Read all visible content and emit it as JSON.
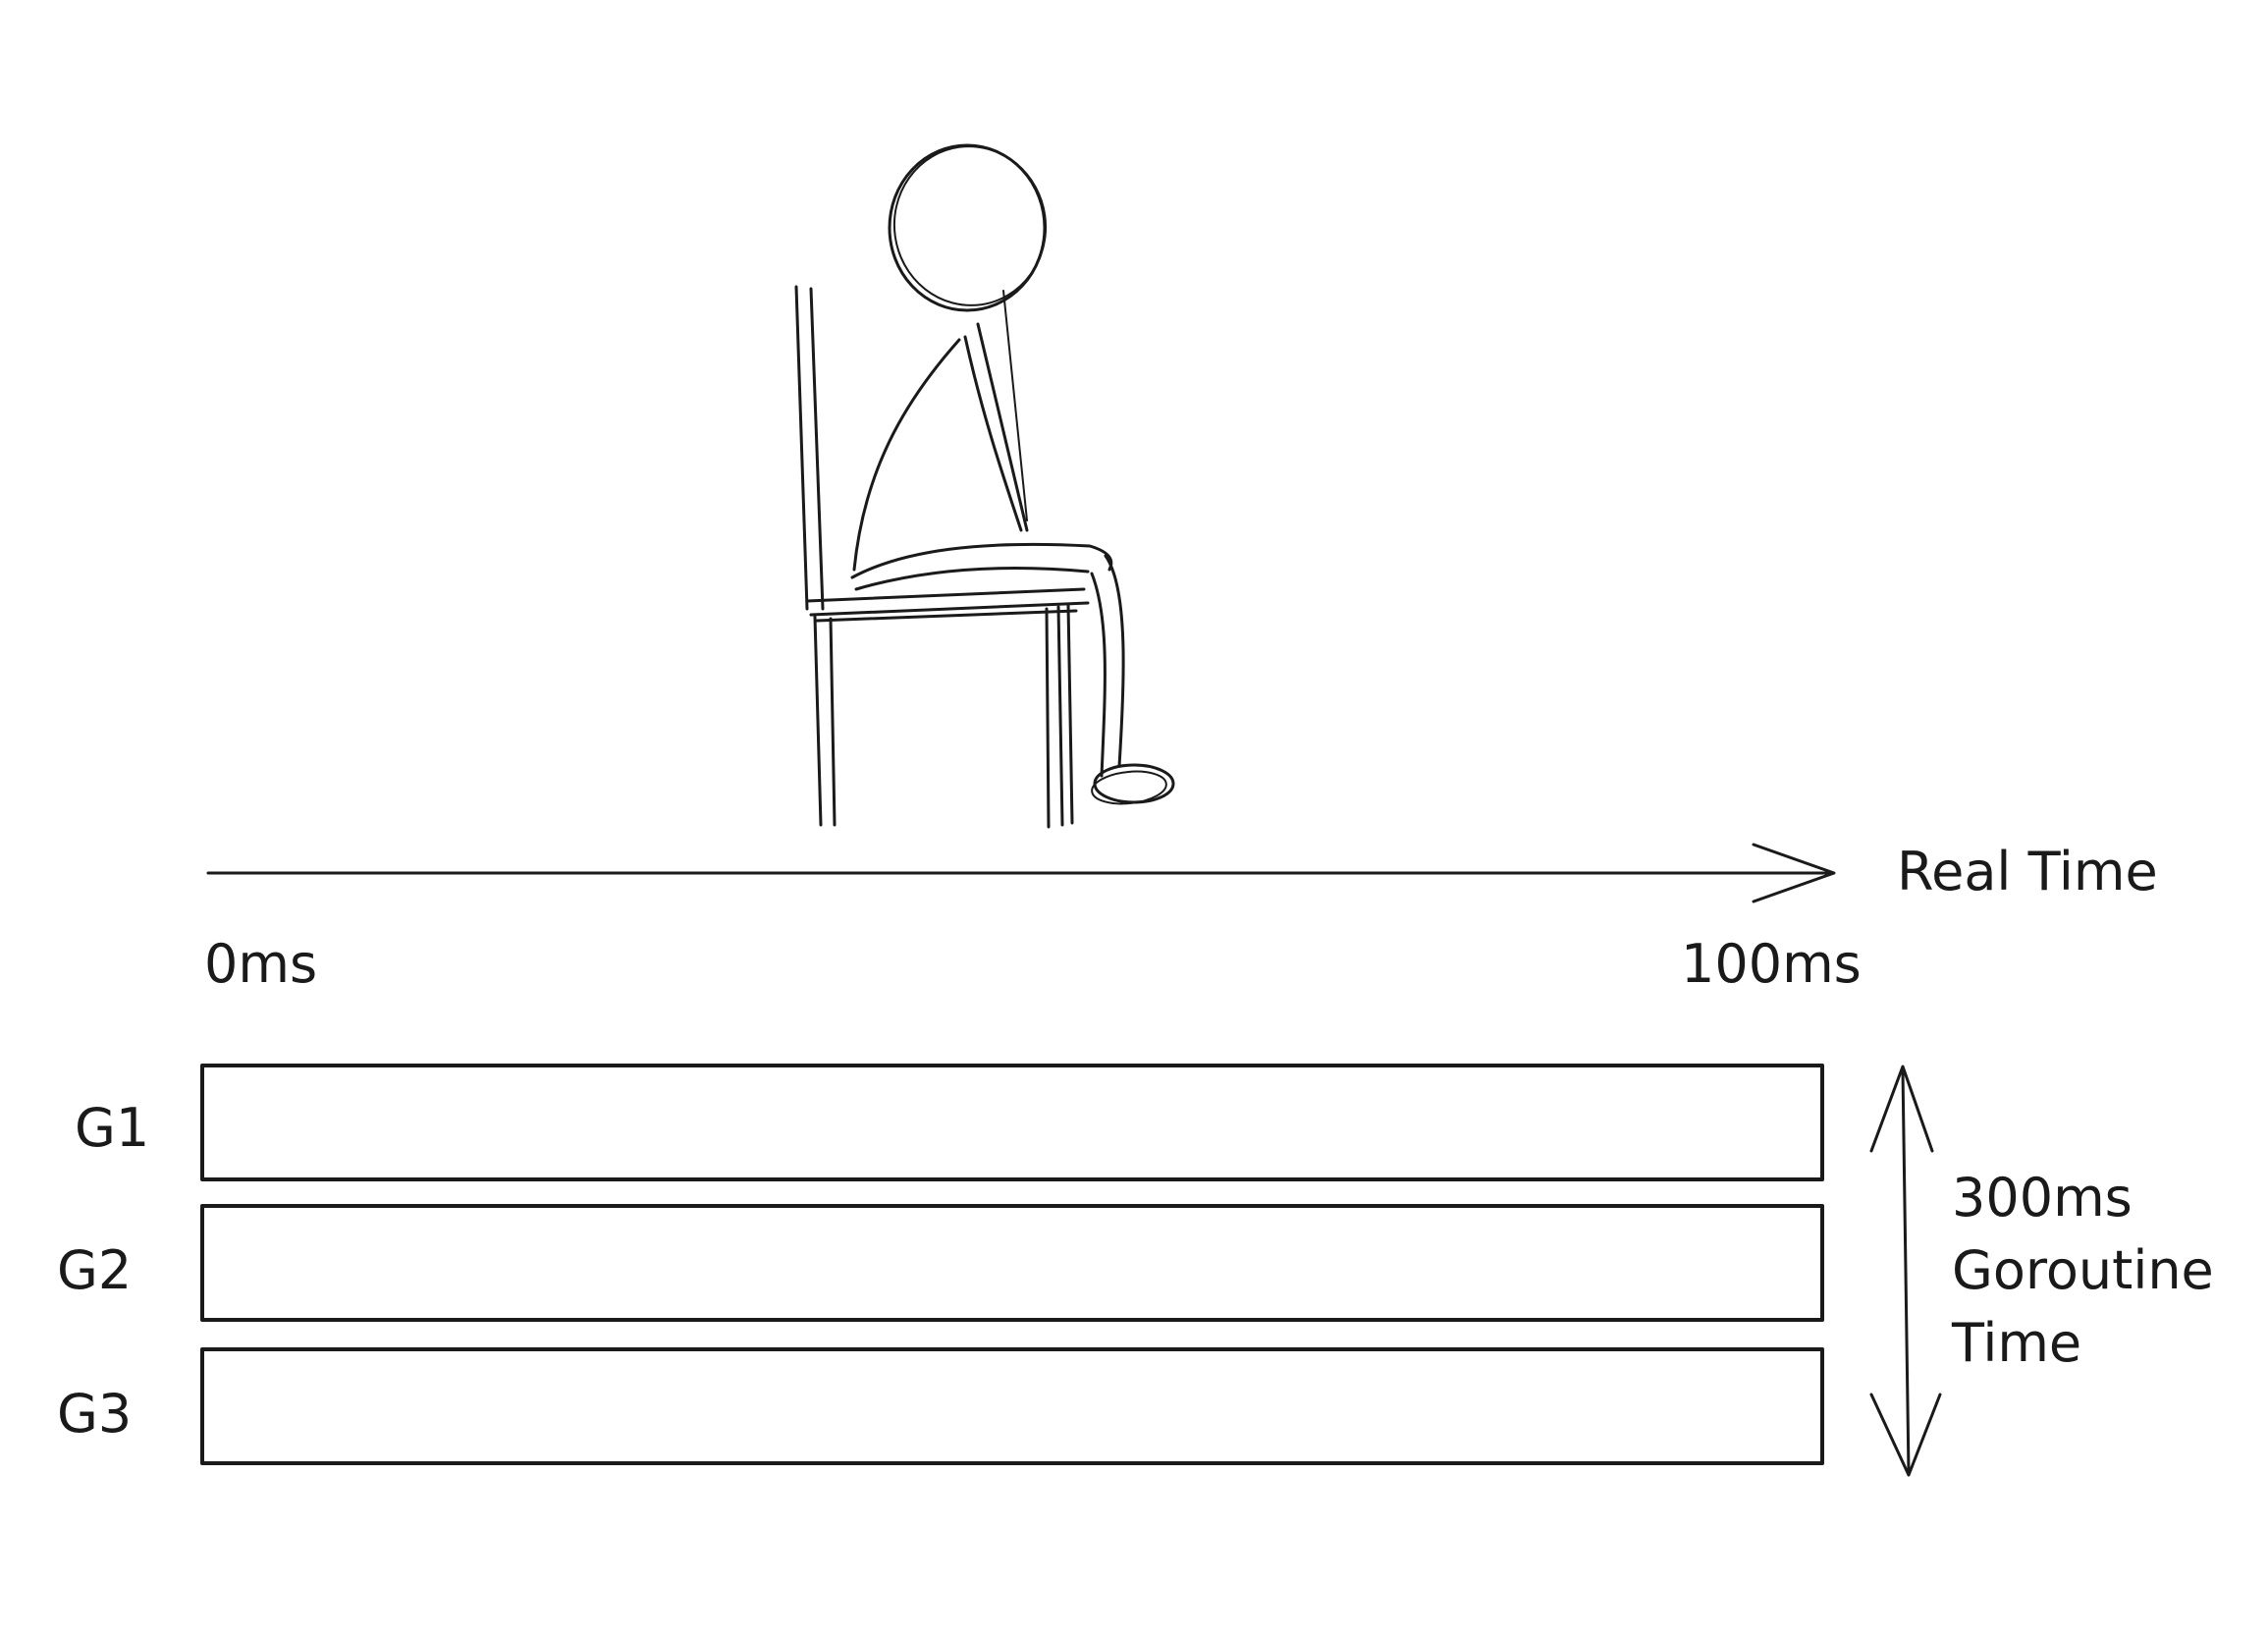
{
  "axis": {
    "label": "Real Time",
    "start_label": "0ms",
    "end_label": "100ms"
  },
  "goroutines": [
    {
      "label": "G1"
    },
    {
      "label": "G2"
    },
    {
      "label": "G3"
    }
  ],
  "total": {
    "line1": "300ms",
    "line2": "Goroutine",
    "line3": "Time"
  },
  "colors": {
    "ink": "#1a1a1a",
    "background": "#ffffff"
  }
}
